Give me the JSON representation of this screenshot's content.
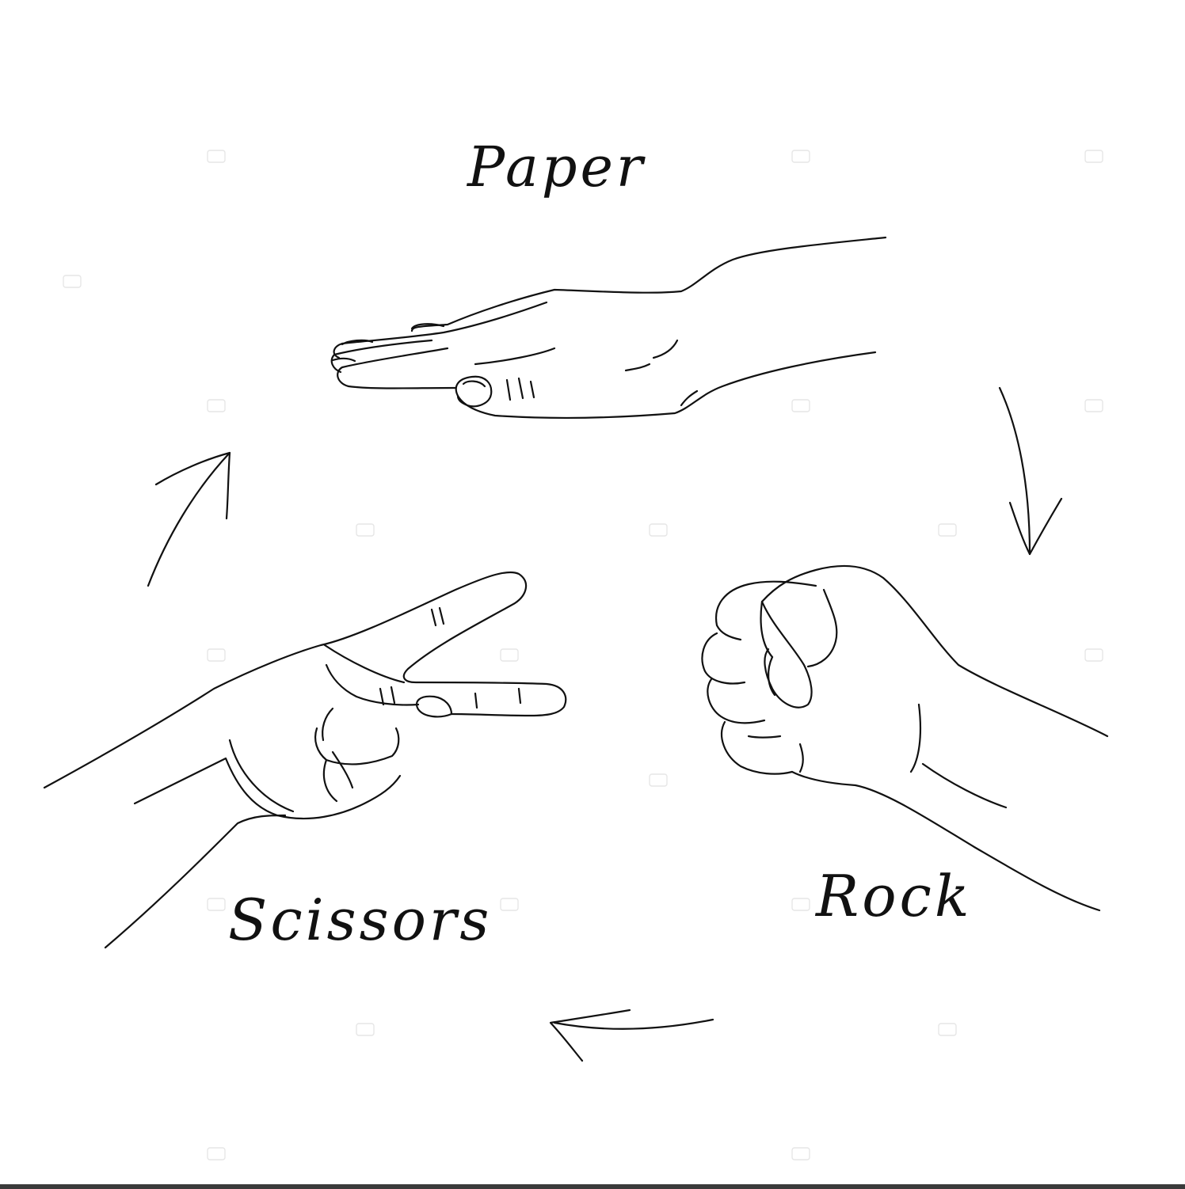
{
  "labels": {
    "paper": "Paper",
    "rock": "Rock",
    "scissors": "Scissors"
  },
  "watermark": {
    "brand": "depositphotos"
  },
  "colors": {
    "ink": "#111111",
    "background": "#ffffff",
    "watermark": "#e6e6e6"
  },
  "icons": [
    "paper-hand-icon",
    "rock-fist-icon",
    "scissors-hand-icon",
    "arrow-paper-to-rock-icon",
    "arrow-rock-to-scissors-icon",
    "arrow-scissors-to-paper-icon"
  ]
}
